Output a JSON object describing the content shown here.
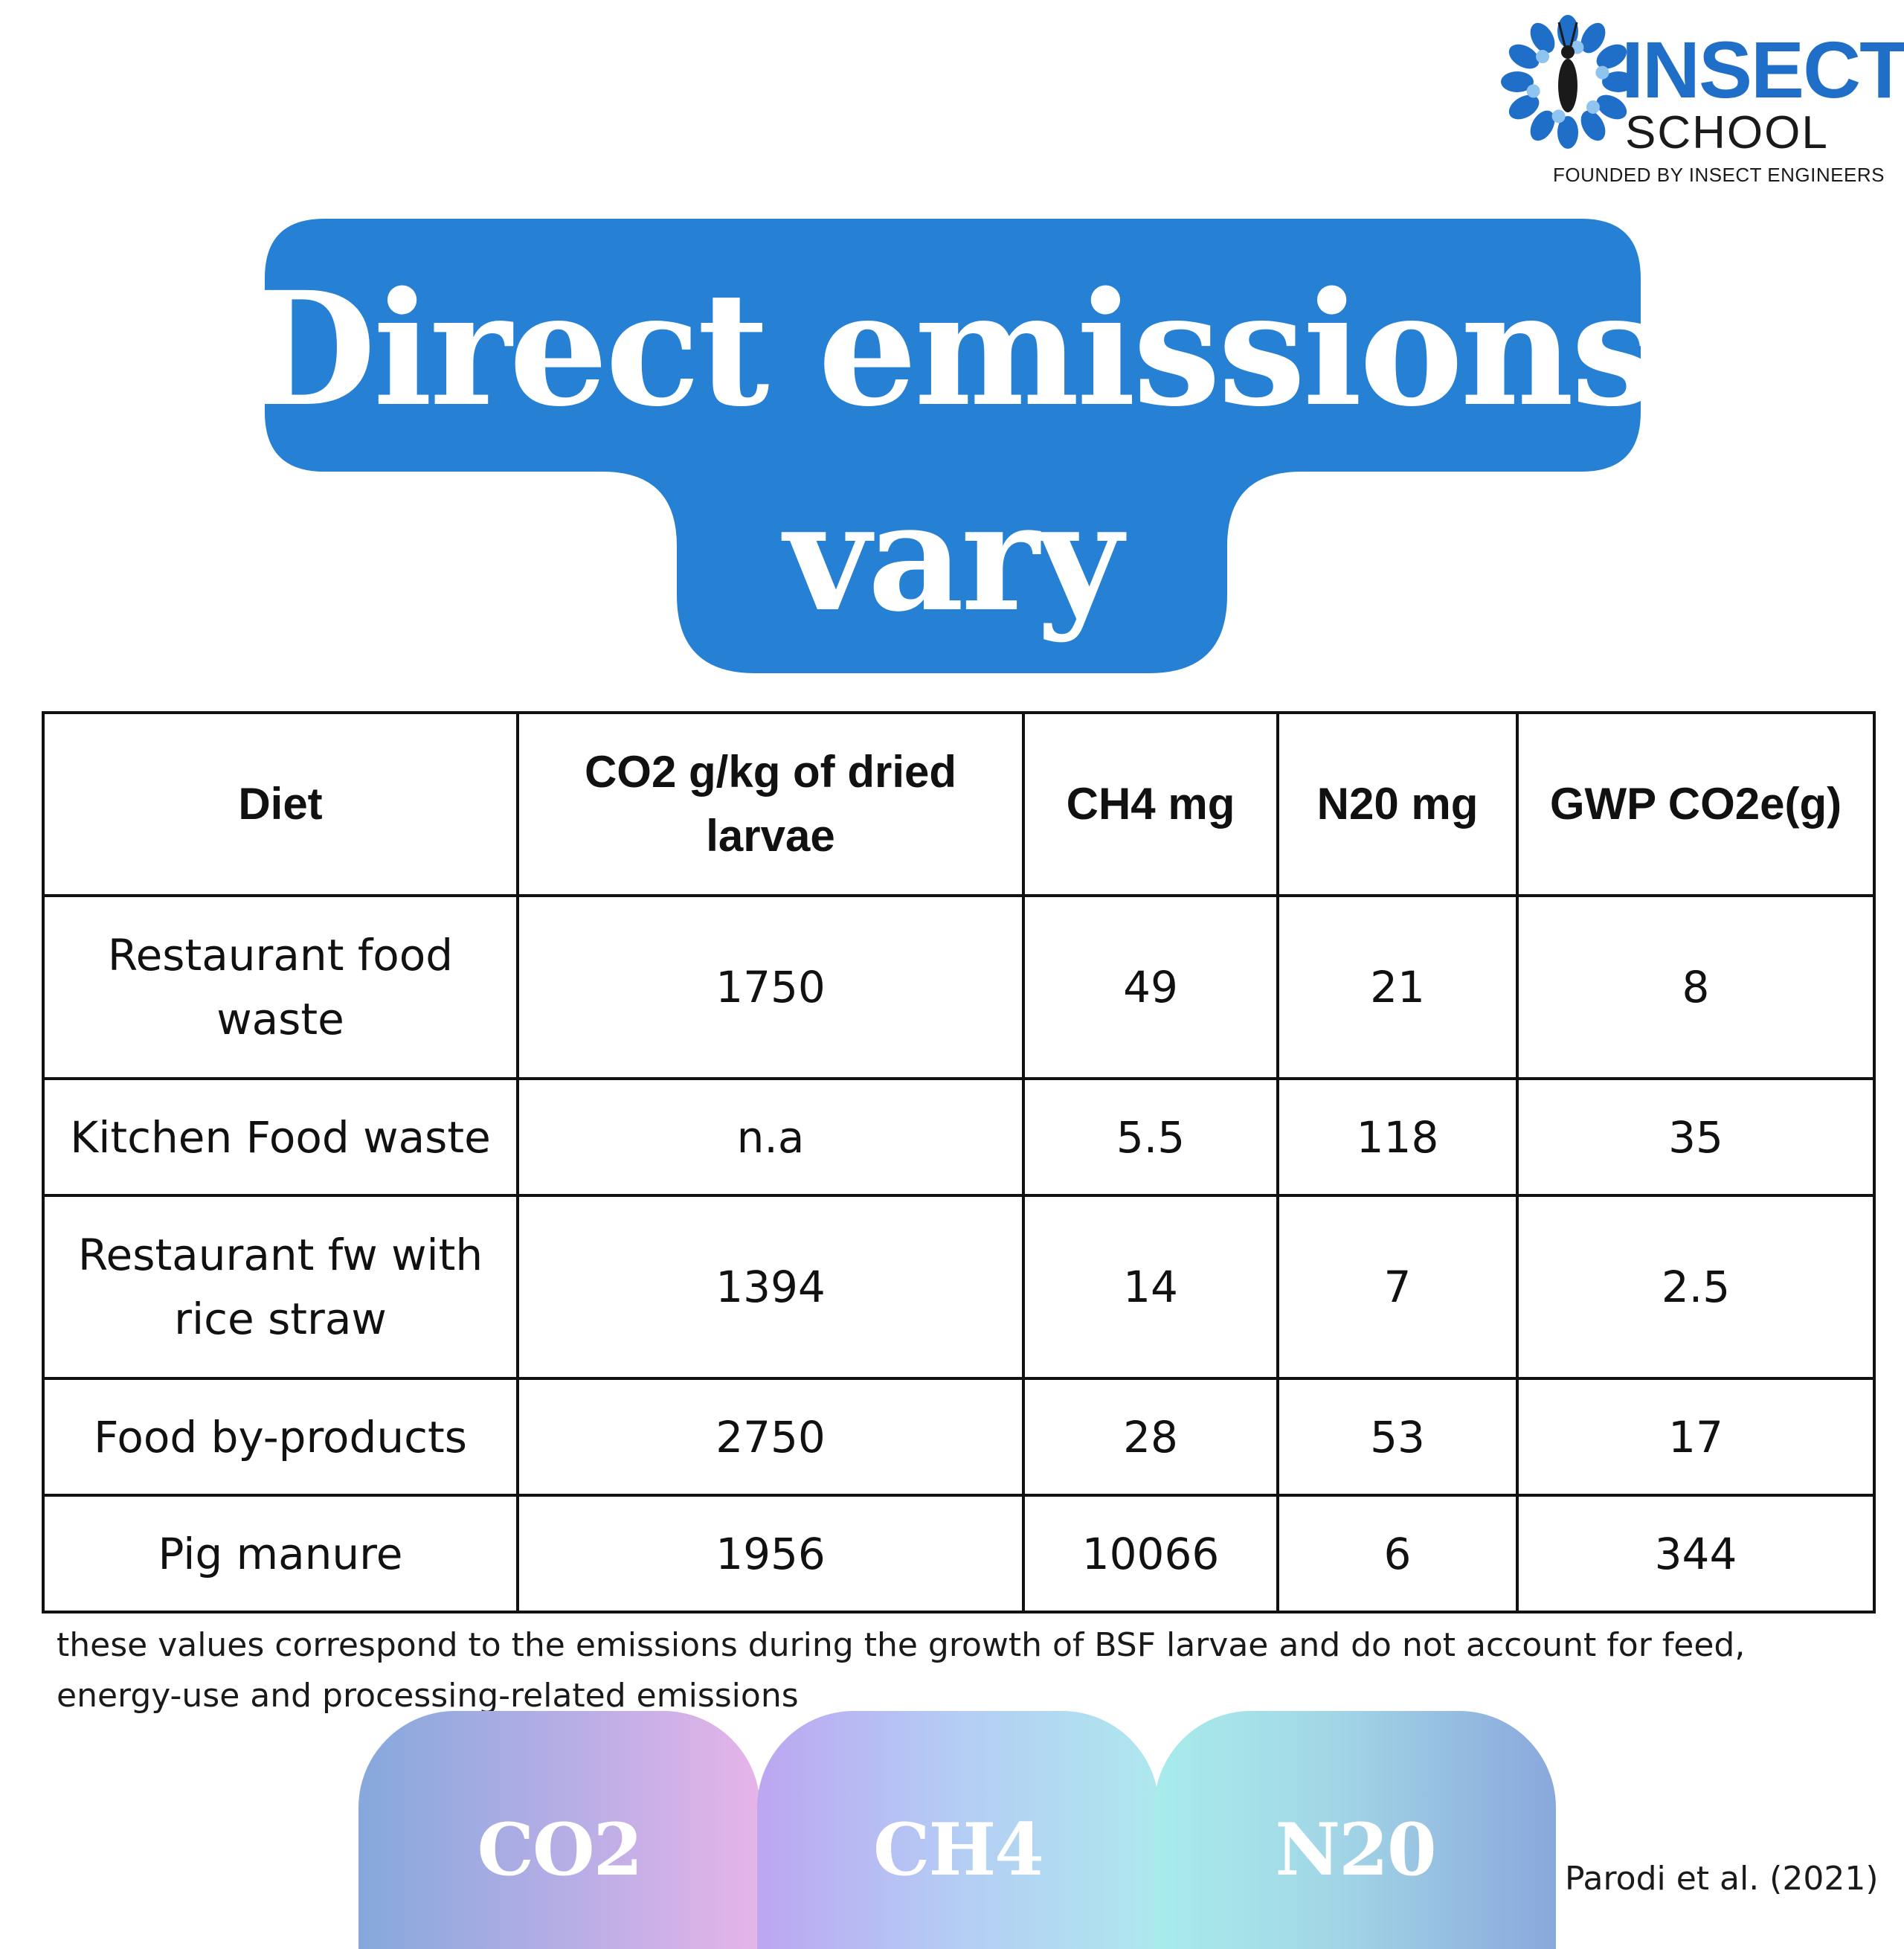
{
  "logo": {
    "name": "INSECT",
    "sub": "SCHOOL",
    "tagline": "FOUNDED BY INSECT ENGINEERS",
    "brand_color": "#1f6fc8"
  },
  "title": {
    "line1": "Direct emissions",
    "line2": "vary",
    "banner_color": "#2680d3"
  },
  "table": {
    "headers": [
      "Diet",
      "CO2 g/kg of dried larvae",
      "CH4 mg",
      "N20 mg",
      "GWP CO2e(g)"
    ],
    "rows": [
      [
        "Restaurant food waste",
        "1750",
        "49",
        "21",
        "8"
      ],
      [
        "Kitchen Food waste",
        "n.a",
        "5.5",
        "118",
        "35"
      ],
      [
        "Restaurant fw with rice straw",
        "1394",
        "14",
        "7",
        "2.5"
      ],
      [
        "Food by-products",
        "2750",
        "28",
        "53",
        "17"
      ],
      [
        "Pig manure",
        "1956",
        "10066",
        "6",
        "344"
      ]
    ]
  },
  "footnote": "these values correspond to the emissions during the growth of BSF larvae and do not account for feed, energy-use and processing-related emissions",
  "gases": [
    {
      "label": "CO2"
    },
    {
      "label": "CH4"
    },
    {
      "label": "N20"
    }
  ],
  "citation": "Parodi et al. (2021)"
}
